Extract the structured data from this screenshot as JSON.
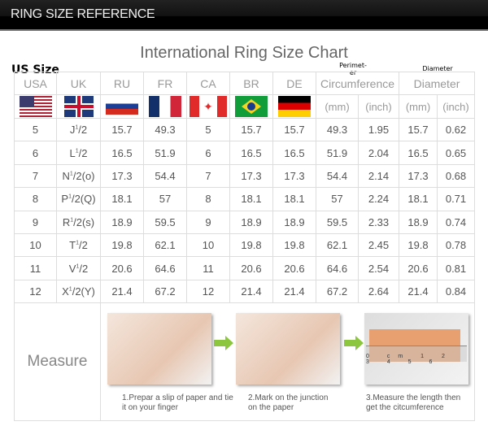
{
  "header": {
    "title": "RING SIZE REFERENCE"
  },
  "chart_title": "International Ring Size Chart",
  "annotations": {
    "us_size": "US Size",
    "perimeter": "Perimet-\ner",
    "diameter": "Diameter"
  },
  "columns": [
    "USA",
    "UK",
    "RU",
    "FR",
    "CA",
    "BR",
    "DE",
    "Circumference",
    "Diameter"
  ],
  "units": {
    "circ_mm": "(mm)",
    "circ_inch": "(inch)",
    "dia_mm": "(mm)",
    "dia_inch": "(inch)"
  },
  "flags": [
    "us-flag",
    "uk-flag",
    "russia-flag",
    "france-flag",
    "canada-flag",
    "brazil-flag",
    "germany-flag"
  ],
  "rows": [
    {
      "usa": "5",
      "uk": "J",
      "uk_sup": "1",
      "uk_tail": "/2",
      "ru": "15.7",
      "fr": "49.3",
      "ca": "5",
      "br": "15.7",
      "de": "15.7",
      "c_mm": "49.3",
      "c_in": "1.95",
      "d_mm": "15.7",
      "d_in": "0.62"
    },
    {
      "usa": "6",
      "uk": "L",
      "uk_sup": "1",
      "uk_tail": "/2",
      "ru": "16.5",
      "fr": "51.9",
      "ca": "6",
      "br": "16.5",
      "de": "16.5",
      "c_mm": "51.9",
      "c_in": "2.04",
      "d_mm": "16.5",
      "d_in": "0.65"
    },
    {
      "usa": "7",
      "uk": "N",
      "uk_sup": "1",
      "uk_tail": "/2(o)",
      "ru": "17.3",
      "fr": "54.4",
      "ca": "7",
      "br": "17.3",
      "de": "17.3",
      "c_mm": "54.4",
      "c_in": "2.14",
      "d_mm": "17.3",
      "d_in": "0.68"
    },
    {
      "usa": "8",
      "uk": "P",
      "uk_sup": "1",
      "uk_tail": "/2(Q)",
      "ru": "18.1",
      "fr": "57",
      "ca": "8",
      "br": "18.1",
      "de": "18.1",
      "c_mm": "57",
      "c_in": "2.24",
      "d_mm": "18.1",
      "d_in": "0.71"
    },
    {
      "usa": "9",
      "uk": "R",
      "uk_sup": "1",
      "uk_tail": "/2(s)",
      "ru": "18.9",
      "fr": "59.5",
      "ca": "9",
      "br": "18.9",
      "de": "18.9",
      "c_mm": "59.5",
      "c_in": "2.33",
      "d_mm": "18.9",
      "d_in": "0.74"
    },
    {
      "usa": "10",
      "uk": "T",
      "uk_sup": "1",
      "uk_tail": "/2",
      "ru": "19.8",
      "fr": "62.1",
      "ca": "10",
      "br": "19.8",
      "de": "19.8",
      "c_mm": "62.1",
      "c_in": "2.45",
      "d_mm": "19.8",
      "d_in": "0.78"
    },
    {
      "usa": "11",
      "uk": "V",
      "uk_sup": "1",
      "uk_tail": "/2",
      "ru": "20.6",
      "fr": "64.6",
      "ca": "11",
      "br": "20.6",
      "de": "20.6",
      "c_mm": "64.6",
      "c_in": "2.54",
      "d_mm": "20.6",
      "d_in": "0.81"
    },
    {
      "usa": "12",
      "uk": "X",
      "uk_sup": "1",
      "uk_tail": "/2(Y)",
      "ru": "21.4",
      "fr": "67.2",
      "ca": "12",
      "br": "21.4",
      "de": "21.4",
      "c_mm": "67.2",
      "c_in": "2.64",
      "d_mm": "21.4",
      "d_in": "0.84"
    }
  ],
  "measure": {
    "label": "Measure",
    "ruler": "0 cm 1 2 3 4 5 6",
    "steps": [
      "1.Prepar a slip of paper and tie it on your finger",
      "2.Mark on the junction on the paper",
      "3.Measure the length then get the citcumference"
    ]
  },
  "colors": {
    "arrow": "#8cc63f",
    "border": "#dddddd"
  }
}
